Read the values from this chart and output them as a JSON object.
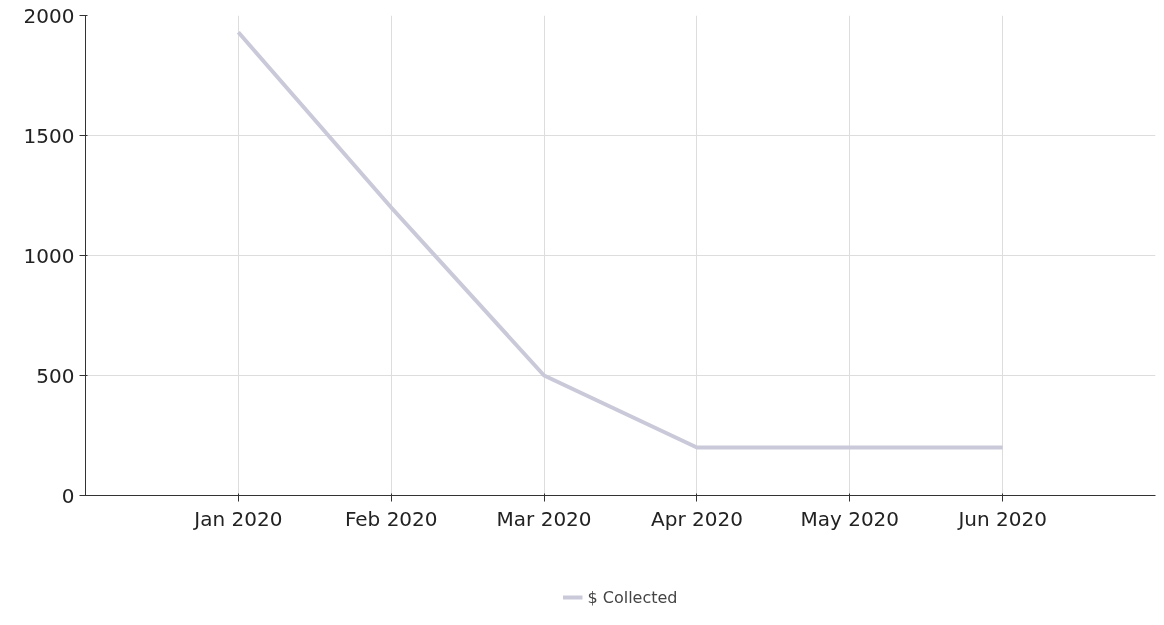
{
  "chart_data": {
    "type": "line",
    "categories": [
      "Jan 2020",
      "Feb 2020",
      "Mar 2020",
      "Apr 2020",
      "May 2020",
      "Jun 2020"
    ],
    "series": [
      {
        "name": "$ Collected",
        "color": "#c9c9d9",
        "values": [
          1930,
          1200,
          500,
          200,
          200,
          200
        ]
      }
    ],
    "ylim": [
      0,
      2000
    ],
    "yticks": [
      0,
      500,
      1000,
      1500,
      2000
    ],
    "grid": true,
    "legend": "bottom"
  }
}
